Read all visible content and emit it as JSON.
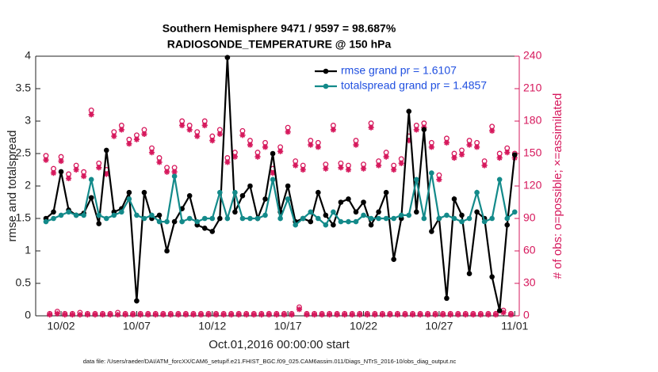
{
  "chart_data": {
    "type": "line",
    "title": "Southern Hemisphere 9471 / 9597 = 98.687%",
    "subtitle": "RADIOSONDE_TEMPERATURE @ 150 hPa",
    "x_label": "Oct.01,2016 00:00:00 start",
    "y_label": "rmse and totalspread",
    "y2_label": "# of obs: o=possible; ×=assimilated",
    "footnote": "data file: /Users/raeder/DAI/ATM_forcXX/CAM6_setup/f.e21.FHIST_BGC.f09_025.CAM6assim.011/Diags_NTrS_2016-10/obs_diag_output.nc",
    "x": [
      0,
      0.5,
      1,
      1.5,
      2,
      2.5,
      3,
      3.5,
      4,
      4.5,
      5,
      5.5,
      6,
      6.5,
      7,
      7.5,
      8,
      8.5,
      9,
      9.5,
      10,
      10.5,
      11,
      11.5,
      12,
      12.5,
      13,
      13.5,
      14,
      14.5,
      15,
      15.5,
      16,
      16.5,
      17,
      17.5,
      18,
      18.5,
      19,
      19.5,
      20,
      20.5,
      21,
      21.5,
      22,
      22.5,
      23,
      23.5,
      24,
      24.5,
      25,
      25.5,
      26,
      26.5,
      27,
      27.5,
      28,
      28.5,
      29,
      29.5,
      30,
      30.5,
      31
    ],
    "xlim": [
      -0.68,
      31.3
    ],
    "xticks": [
      {
        "value": 1,
        "label": "10/02"
      },
      {
        "value": 6,
        "label": "10/07"
      },
      {
        "value": 11,
        "label": "10/12"
      },
      {
        "value": 16,
        "label": "10/17"
      },
      {
        "value": 21,
        "label": "10/22"
      },
      {
        "value": 26,
        "label": "10/27"
      },
      {
        "value": 31,
        "label": "11/01"
      }
    ],
    "ylim": [
      0,
      4
    ],
    "yticks": [
      0,
      0.5,
      1,
      1.5,
      2,
      2.5,
      3,
      3.5,
      4
    ],
    "y2lim": [
      0,
      240
    ],
    "y2ticks": [
      0,
      30,
      60,
      90,
      120,
      150,
      180,
      210,
      240
    ],
    "legend": "upper right",
    "series": [
      {
        "name": "rmse grand pr = 1.6107",
        "color": "#000000",
        "marker": "dot",
        "line": true,
        "values": [
          1.5,
          1.6,
          2.22,
          1.63,
          1.55,
          1.58,
          1.82,
          1.42,
          2.55,
          1.6,
          1.65,
          1.9,
          0.23,
          1.9,
          1.5,
          1.55,
          1.0,
          1.45,
          1.65,
          1.85,
          1.4,
          1.35,
          1.3,
          1.5,
          3.98,
          1.6,
          1.85,
          2.0,
          1.5,
          1.8,
          2.5,
          1.6,
          2.0,
          1.45,
          1.5,
          1.45,
          1.9,
          1.55,
          1.4,
          1.75,
          1.8,
          1.6,
          1.75,
          1.4,
          1.6,
          1.9,
          0.87,
          1.5,
          3.15,
          1.6,
          2.87,
          1.3,
          1.5,
          0.27,
          1.8,
          1.55,
          0.65,
          1.6,
          1.5,
          0.6,
          0.08,
          1.4,
          2.48
        ]
      },
      {
        "name": "totalspread grand pr = 1.4857",
        "color": "#138a8a",
        "marker": "dot",
        "line": true,
        "values": [
          1.45,
          1.5,
          1.55,
          1.6,
          1.55,
          1.55,
          2.1,
          1.55,
          1.5,
          1.55,
          1.6,
          1.8,
          1.55,
          1.5,
          1.55,
          1.45,
          1.45,
          2.15,
          1.45,
          1.5,
          1.45,
          1.5,
          1.5,
          1.9,
          1.5,
          1.9,
          1.5,
          1.5,
          1.5,
          1.55,
          2.1,
          1.5,
          1.8,
          1.4,
          1.5,
          1.6,
          1.5,
          1.4,
          1.6,
          1.45,
          1.45,
          1.45,
          1.55,
          1.5,
          1.5,
          1.5,
          1.5,
          1.55,
          1.55,
          2.1,
          1.5,
          2.2,
          1.5,
          1.55,
          1.5,
          1.45,
          1.5,
          1.9,
          1.45,
          1.5,
          2.1,
          1.5,
          1.6
        ]
      },
      {
        "color": "#d6185c",
        "marker": "o",
        "axis": "y2",
        "values": [
          148,
          136,
          147,
          131,
          139,
          133,
          190,
          141,
          135,
          170,
          176,
          163,
          167,
          172,
          155,
          146,
          137,
          137,
          180,
          176,
          170,
          180,
          166,
          172,
          146,
          151,
          171,
          162,
          151,
          160,
          136,
          156,
          174,
          143,
          139,
          162,
          160,
          140,
          176,
          141,
          139,
          162,
          140,
          178,
          143,
          151,
          139,
          145,
          166,
          176,
          178,
          160,
          130,
          164,
          150,
          153,
          162,
          160,
          143,
          175,
          150,
          155,
          150
        ]
      },
      {
        "color": "#d6185c",
        "marker": "*",
        "axis": "y2",
        "values": [
          144,
          132,
          143,
          127,
          135,
          129,
          186,
          137,
          131,
          166,
          172,
          159,
          163,
          168,
          151,
          142,
          133,
          133,
          176,
          172,
          166,
          176,
          162,
          168,
          142,
          147,
          167,
          158,
          147,
          156,
          132,
          152,
          170,
          139,
          135,
          158,
          156,
          136,
          172,
          137,
          135,
          158,
          136,
          174,
          139,
          147,
          135,
          141,
          162,
          172,
          174,
          156,
          126,
          160,
          146,
          149,
          158,
          156,
          139,
          171,
          146,
          151,
          146
        ]
      },
      {
        "color": "#d6185c",
        "marker": "o",
        "axis": "y2",
        "x": [
          0.25,
          0.75,
          1.25,
          1.75,
          2.25,
          2.75,
          3.25,
          3.75,
          4.25,
          4.75,
          5.25,
          5.75,
          6.25,
          6.75,
          7.25,
          7.75,
          8.25,
          8.75,
          9.25,
          9.75,
          10.25,
          10.75,
          11.25,
          11.75,
          12.25,
          12.75,
          13.25,
          13.75,
          14.25,
          14.75,
          15.25,
          15.75,
          16.25,
          16.75,
          17.25,
          17.75,
          18.25,
          18.75,
          19.25,
          19.75,
          20.25,
          20.75,
          21.25,
          21.75,
          22.25,
          22.75,
          23.25,
          23.75,
          24.25,
          24.75,
          25.25,
          25.75,
          26.25,
          26.75,
          27.25,
          27.75,
          28.25,
          28.75,
          29.25,
          29.75,
          30.25,
          30.75
        ],
        "values": [
          2,
          4,
          2,
          2,
          3,
          2,
          2,
          2,
          2,
          3,
          2,
          2,
          2,
          2,
          2,
          2,
          2,
          2,
          2,
          2,
          2,
          2,
          2,
          2,
          2,
          2,
          2,
          2,
          2,
          2,
          2,
          2,
          2,
          8,
          2,
          2,
          2,
          2,
          2,
          2,
          2,
          2,
          2,
          2,
          2,
          2,
          2,
          2,
          2,
          2,
          2,
          2,
          2,
          2,
          2,
          2,
          2,
          2,
          2,
          2,
          5,
          2
        ]
      },
      {
        "color": "#d6185c",
        "marker": "*",
        "axis": "y2",
        "x": [
          0.25,
          0.75,
          1.25,
          1.75,
          2.25,
          2.75,
          3.25,
          3.75,
          4.25,
          4.75,
          5.25,
          5.75,
          6.25,
          6.75,
          7.25,
          7.75,
          8.25,
          8.75,
          9.25,
          9.75,
          10.25,
          10.75,
          11.25,
          11.75,
          12.25,
          12.75,
          13.25,
          13.75,
          14.25,
          14.75,
          15.25,
          15.75,
          16.25,
          16.75,
          17.25,
          17.75,
          18.25,
          18.75,
          19.25,
          19.75,
          20.25,
          20.75,
          21.25,
          21.75,
          22.25,
          22.75,
          23.25,
          23.75,
          24.25,
          24.75,
          25.25,
          25.75,
          26.25,
          26.75,
          27.25,
          27.75,
          28.25,
          28.75,
          29.25,
          29.75,
          30.25,
          30.75
        ],
        "values": [
          1,
          2,
          1,
          1,
          1,
          1,
          1,
          1,
          1,
          1,
          1,
          1,
          1,
          1,
          1,
          1,
          1,
          1,
          1,
          1,
          1,
          1,
          1,
          1,
          1,
          1,
          1,
          1,
          1,
          1,
          1,
          1,
          1,
          6,
          1,
          1,
          1,
          1,
          1,
          1,
          1,
          1,
          1,
          1,
          1,
          1,
          1,
          1,
          1,
          1,
          1,
          1,
          1,
          1,
          1,
          1,
          1,
          1,
          1,
          1,
          3,
          1
        ]
      }
    ]
  }
}
